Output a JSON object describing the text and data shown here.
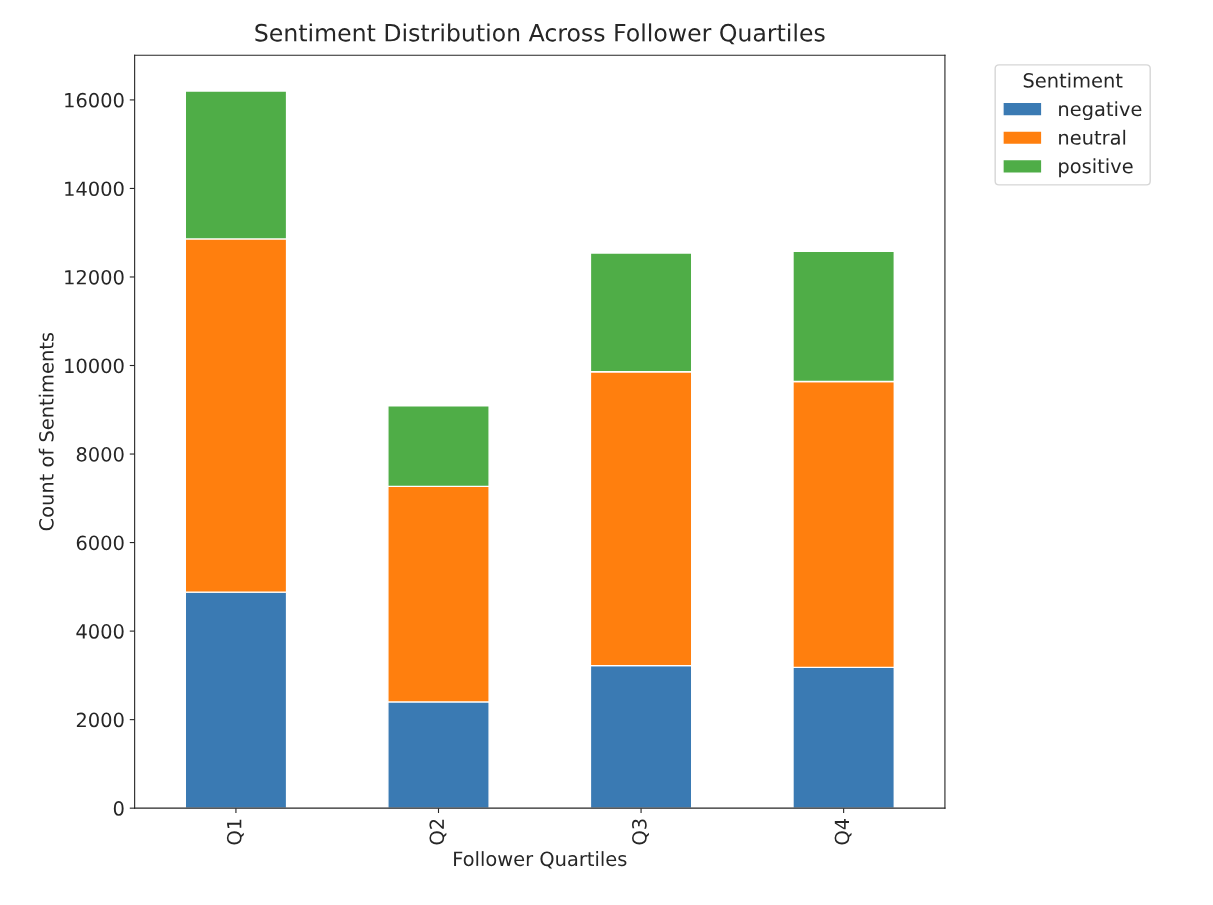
{
  "chart_data": {
    "type": "bar",
    "title": "Sentiment Distribution Across Follower Quartiles",
    "xlabel": "Follower Quartiles",
    "ylabel": "Count of Sentiments",
    "legend_title": "Sentiment",
    "categories": [
      "Q1",
      "Q2",
      "Q3",
      "Q4"
    ],
    "stacked": true,
    "legend": "top right",
    "series": [
      {
        "name": "negative",
        "color": "#3a7ab3",
        "values": [
          4880,
          2400,
          3220,
          3180
        ]
      },
      {
        "name": "neutral",
        "color": "#ff7f0e",
        "values": [
          7980,
          4870,
          6640,
          6460
        ]
      },
      {
        "name": "positive",
        "color": "#4fad47",
        "values": [
          3340,
          1820,
          2680,
          2940
        ]
      }
    ],
    "ylim": [
      0,
      17010
    ],
    "yticks": [
      0,
      2000,
      4000,
      6000,
      8000,
      10000,
      12000,
      14000,
      16000
    ]
  }
}
